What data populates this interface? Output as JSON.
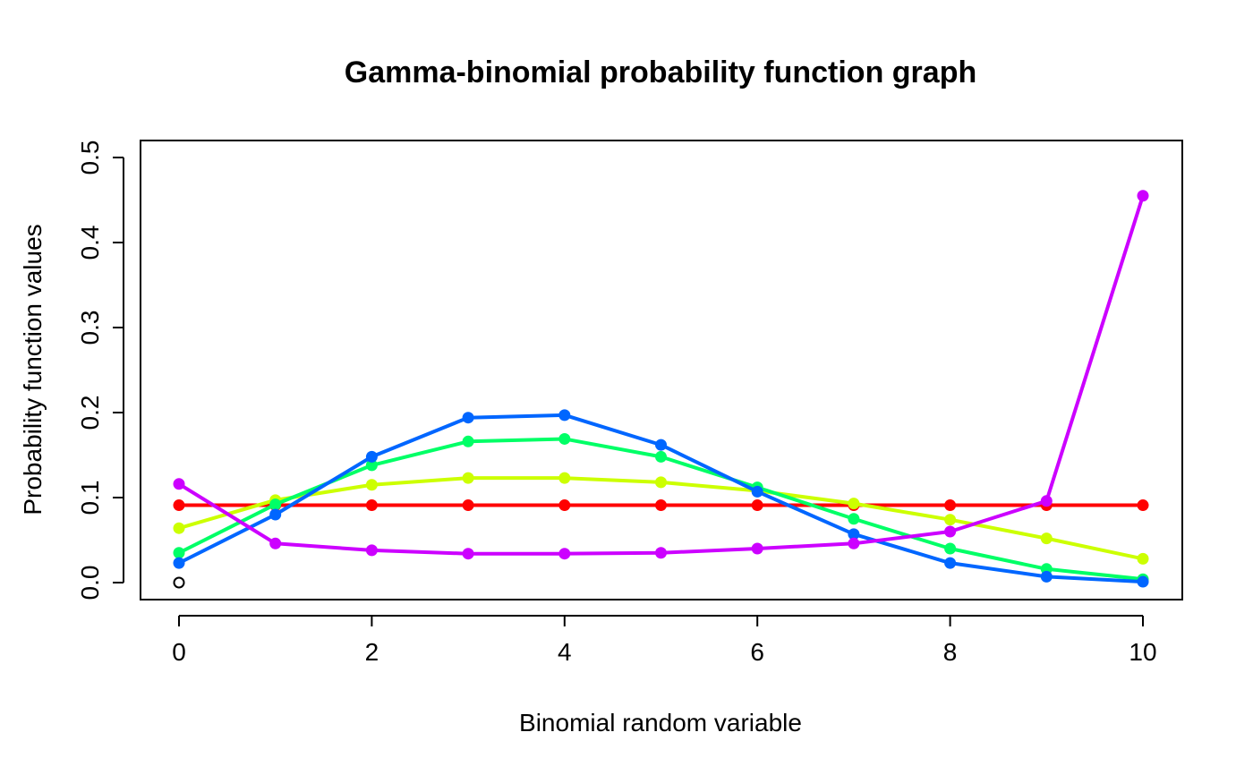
{
  "chart_data": {
    "type": "line",
    "title": "Gamma-binomial probability function graph",
    "xlabel": "Binomial random variable",
    "ylabel": "Probability function values",
    "xlim": [
      0,
      10
    ],
    "ylim": [
      0,
      0.5
    ],
    "xticks": [
      "0",
      "2",
      "4",
      "6",
      "8",
      "10"
    ],
    "yticks": [
      "0.0",
      "0.1",
      "0.2",
      "0.3",
      "0.4",
      "0.5"
    ],
    "grid": false,
    "legend": "none",
    "x": [
      0,
      1,
      2,
      3,
      4,
      5,
      6,
      7,
      8,
      9,
      10
    ],
    "series": [
      {
        "color": "#ff0000",
        "values": [
          0.091,
          0.091,
          0.091,
          0.091,
          0.091,
          0.091,
          0.091,
          0.091,
          0.091,
          0.091,
          0.091
        ]
      },
      {
        "color": "#ccff00",
        "values": [
          0.064,
          0.097,
          0.115,
          0.123,
          0.123,
          0.118,
          0.108,
          0.093,
          0.074,
          0.052,
          0.028
        ]
      },
      {
        "color": "#00ff66",
        "values": [
          0.035,
          0.092,
          0.138,
          0.166,
          0.169,
          0.148,
          0.112,
          0.075,
          0.04,
          0.016,
          0.004
        ]
      },
      {
        "color": "#0066ff",
        "values": [
          0.023,
          0.08,
          0.148,
          0.194,
          0.197,
          0.162,
          0.107,
          0.057,
          0.023,
          0.007,
          0.001
        ]
      },
      {
        "color": "#cc00ff",
        "values": [
          0.116,
          0.046,
          0.038,
          0.034,
          0.034,
          0.035,
          0.04,
          0.046,
          0.06,
          0.096,
          0.455
        ]
      }
    ],
    "annotations": [
      {
        "type": "open-circle",
        "x": 0,
        "y": 0,
        "color": "#000000"
      }
    ]
  }
}
